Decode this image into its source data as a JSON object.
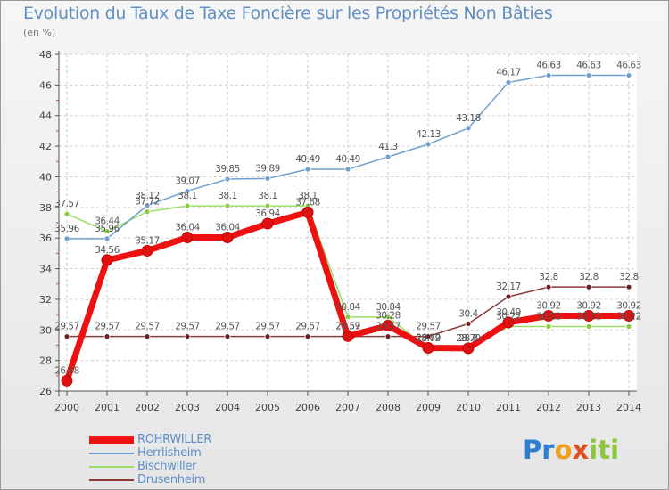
{
  "title": "Evolution du Taux de Taxe Foncière sur les Propriétés Non Bâties",
  "unit_label": "(en %)",
  "logo_text": "Proxiti",
  "chart_data": {
    "type": "line",
    "title": "Evolution du Taux de Taxe Foncière sur les Propriétés Non Bâties",
    "ylabel": "(en %)",
    "xlabel": "",
    "ylim": [
      26,
      48
    ],
    "yticks": [
      26,
      28,
      30,
      32,
      34,
      36,
      38,
      40,
      42,
      44,
      46,
      48
    ],
    "x": [
      "2000",
      "2001",
      "2002",
      "2003",
      "2004",
      "2005",
      "2006",
      "2007",
      "2008",
      "2009",
      "2010",
      "2011",
      "2012",
      "2013",
      "2014"
    ],
    "series": [
      {
        "name": "ROHRWILLER",
        "color": "#ee1111",
        "marker_color": "#dd1111",
        "values": [
          26.68,
          34.56,
          35.17,
          36.04,
          36.04,
          36.94,
          37.68,
          29.59,
          30.28,
          28.82,
          28.8,
          30.49,
          30.92,
          30.92,
          30.92
        ],
        "labels": [
          "26.68",
          "34.56",
          "35.17",
          "36.04",
          "36.04",
          "36.94",
          "37.68",
          "29.59",
          "30.28",
          "28.82",
          "28.8",
          "30.49",
          "30.92",
          "30.92",
          "30.92"
        ]
      },
      {
        "name": "Herrlisheim",
        "color": "#6f9fce",
        "marker_color": "#6f9fce",
        "values": [
          35.96,
          35.96,
          38.12,
          39.07,
          39.85,
          39.89,
          40.49,
          40.49,
          41.3,
          42.13,
          43.18,
          46.17,
          46.63,
          46.63,
          46.63
        ],
        "labels": [
          "35.96",
          "35.96",
          "38.12",
          "39.07",
          "39.85",
          "39.89",
          "40.49",
          "40.49",
          "41.3",
          "42.13",
          "43.18",
          "46.17",
          "46.63",
          "46.63",
          "46.63"
        ]
      },
      {
        "name": "Bischwiller",
        "color": "#99dd66",
        "marker_color": "#88cc44",
        "values": [
          37.57,
          36.44,
          37.72,
          38.1,
          38.1,
          38.1,
          38.1,
          30.84,
          30.84,
          28.79,
          28.79,
          30.22,
          30.22,
          30.22,
          30.22
        ],
        "labels": [
          "37.57",
          "36.44",
          "37.72",
          "38.1",
          "38.1",
          "38.1",
          "38.1",
          "30.84",
          "30.84",
          "28.79",
          "28.79",
          "30.22",
          "30.22",
          "30.22",
          "30.22"
        ]
      },
      {
        "name": "Drusenheim",
        "color": "#8b3a3a",
        "marker_color": "#6e1f1f",
        "values": [
          29.57,
          29.57,
          29.57,
          29.57,
          29.57,
          29.57,
          29.57,
          29.57,
          29.57,
          29.57,
          30.4,
          32.17,
          32.8,
          32.8,
          32.8
        ],
        "labels": [
          "29.57",
          "29.57",
          "29.57",
          "29.57",
          "29.57",
          "29.57",
          "29.57",
          "29.57",
          "29.57",
          "29.57",
          "30.4",
          "32.17",
          "32.8",
          "32.8",
          "32.8"
        ]
      }
    ]
  }
}
